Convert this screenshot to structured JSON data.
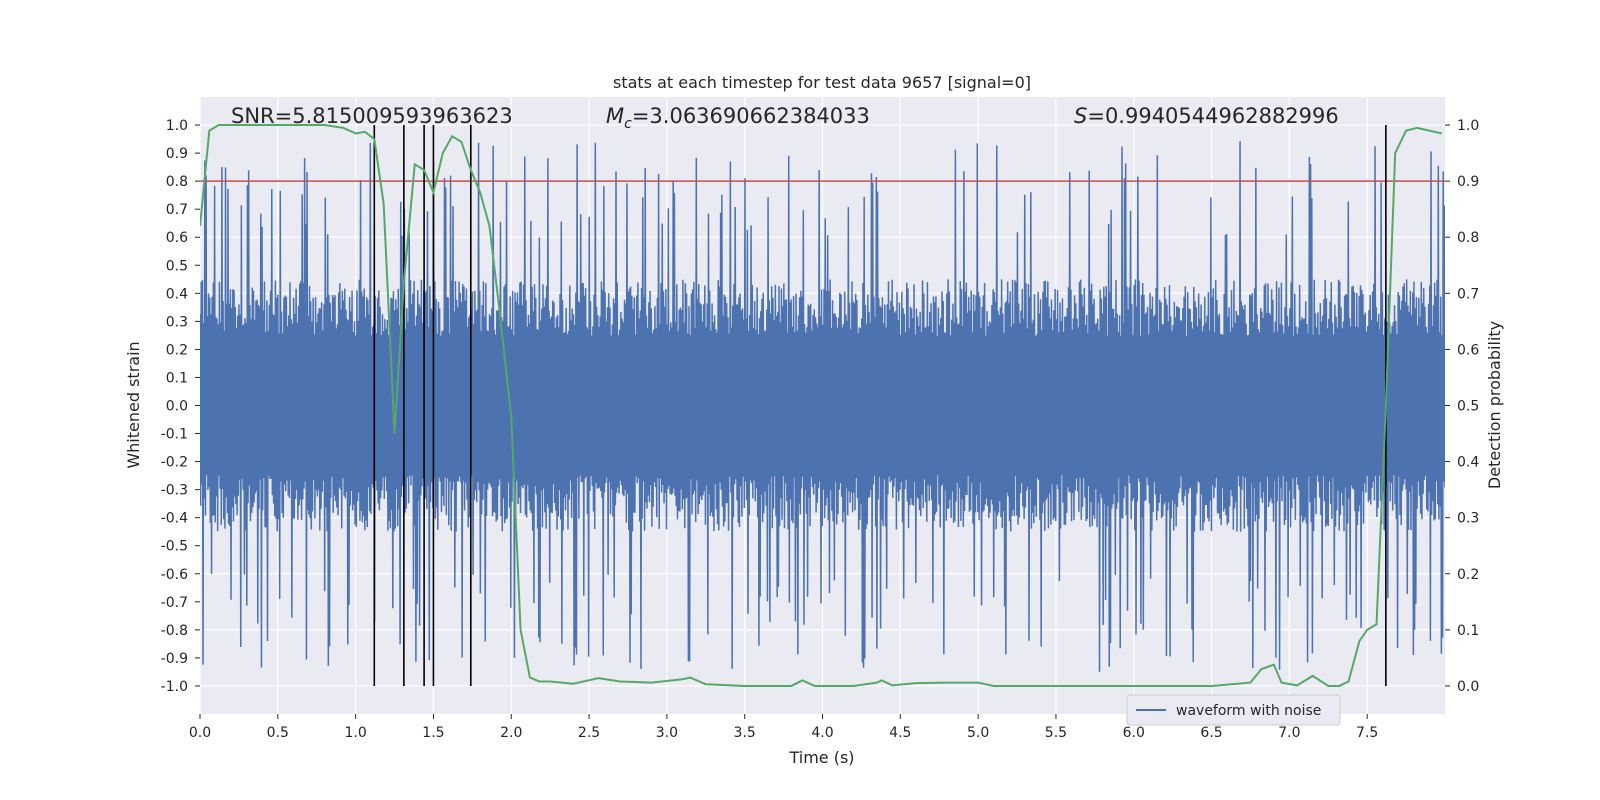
{
  "chart_data": {
    "type": "line",
    "title": "stats at each timestep for test data 9657 [signal=0]",
    "xlabel": "Time (s)",
    "ylabel": "Whitened strain",
    "ylabel_right": "Detection probability",
    "xlim": [
      0.0,
      8.0
    ],
    "ylim": [
      -1.1,
      1.1
    ],
    "ylim_right": [
      -0.05,
      1.05
    ],
    "x_ticks": [
      0.0,
      0.5,
      1.0,
      1.5,
      2.0,
      2.5,
      3.0,
      3.5,
      4.0,
      4.5,
      5.0,
      5.5,
      6.0,
      6.5,
      7.0,
      7.5
    ],
    "x_tick_labels": [
      "0.0",
      "0.5",
      "1.0",
      "1.5",
      "2.0",
      "2.5",
      "3.0",
      "3.5",
      "4.0",
      "4.5",
      "5.0",
      "5.5",
      "6.0",
      "6.5",
      "7.0",
      "7.5"
    ],
    "y_ticks": [
      -1.0,
      -0.9,
      -0.8,
      -0.7,
      -0.6,
      -0.5,
      -0.4,
      -0.3,
      -0.2,
      -0.1,
      0.0,
      0.1,
      0.2,
      0.3,
      0.4,
      0.5,
      0.6,
      0.7,
      0.8,
      0.9,
      1.0
    ],
    "y_tick_labels": [
      "-1.0",
      "-0.9",
      "-0.8",
      "-0.7",
      "-0.6",
      "-0.5",
      "-0.4",
      "-0.3",
      "-0.2",
      "-0.1",
      "0.0",
      "0.1",
      "0.2",
      "0.3",
      "0.4",
      "0.5",
      "0.6",
      "0.7",
      "0.8",
      "0.9",
      "1.0"
    ],
    "y_ticks_right": [
      0.0,
      0.1,
      0.2,
      0.3,
      0.4,
      0.5,
      0.6,
      0.7,
      0.8,
      0.9,
      1.0
    ],
    "y_tick_labels_right": [
      "0.0",
      "0.1",
      "0.2",
      "0.3",
      "0.4",
      "0.5",
      "0.6",
      "0.7",
      "0.8",
      "0.9",
      "1.0"
    ],
    "annotations": {
      "snr": "SNR=5.815009593963623",
      "mc_prefix": "M",
      "mc_sub": "c",
      "mc_value": "=3.063690662384033",
      "s_prefix": "S",
      "s_value": "=0.9940544962882996"
    },
    "threshold": {
      "axis": "right",
      "value": 0.9,
      "color": "#c44e52"
    },
    "vertical_lines": {
      "x": [
        1.12,
        1.31,
        1.44,
        1.5,
        1.74,
        7.62
      ],
      "y_range_right": [
        0.0,
        1.0
      ],
      "color": "#000000"
    },
    "waveform": {
      "name": "waveform with noise",
      "color": "#4c72b0",
      "samples": 2048,
      "x_range": [
        0.0,
        8.0
      ],
      "envelope_typical": 0.45,
      "peak_max": 1.0,
      "peak_min": -0.97
    },
    "probability": {
      "name": "Detection probability",
      "color": "#55a868",
      "x": [
        0.0,
        0.06,
        0.12,
        0.2,
        0.4,
        0.6,
        0.8,
        0.92,
        1.0,
        1.06,
        1.12,
        1.18,
        1.25,
        1.31,
        1.38,
        1.44,
        1.5,
        1.56,
        1.62,
        1.68,
        1.74,
        1.8,
        1.86,
        1.92,
        2.0,
        2.06,
        2.12,
        2.18,
        2.25,
        2.4,
        2.56,
        2.7,
        2.9,
        3.1,
        3.15,
        3.25,
        3.5,
        3.8,
        3.87,
        3.95,
        4.2,
        4.35,
        4.38,
        4.45,
        4.6,
        4.8,
        5.0,
        5.1,
        5.5,
        6.0,
        6.5,
        6.75,
        6.82,
        6.9,
        6.95,
        7.05,
        7.15,
        7.25,
        7.32,
        7.38,
        7.45,
        7.5,
        7.56,
        7.62,
        7.68,
        7.75,
        7.82,
        7.9,
        7.98
      ],
      "values": [
        0.82,
        0.99,
        1.0,
        1.0,
        1.0,
        1.0,
        1.0,
        0.995,
        0.985,
        0.988,
        0.975,
        0.86,
        0.45,
        0.72,
        0.93,
        0.92,
        0.88,
        0.95,
        0.98,
        0.97,
        0.92,
        0.88,
        0.82,
        0.68,
        0.48,
        0.1,
        0.015,
        0.008,
        0.008,
        0.004,
        0.014,
        0.008,
        0.006,
        0.012,
        0.015,
        0.003,
        0.0,
        0.0,
        0.01,
        0.0,
        0.0,
        0.006,
        0.01,
        0.001,
        0.005,
        0.006,
        0.006,
        0.0,
        0.0,
        0.0,
        0.0,
        0.006,
        0.03,
        0.038,
        0.006,
        0.001,
        0.018,
        0.0,
        0.0,
        0.008,
        0.08,
        0.1,
        0.11,
        0.5,
        0.95,
        0.99,
        0.995,
        0.99,
        0.985
      ]
    },
    "legend": {
      "entries": [
        "waveform with noise"
      ],
      "placement": "lower-right"
    },
    "grid": true
  }
}
